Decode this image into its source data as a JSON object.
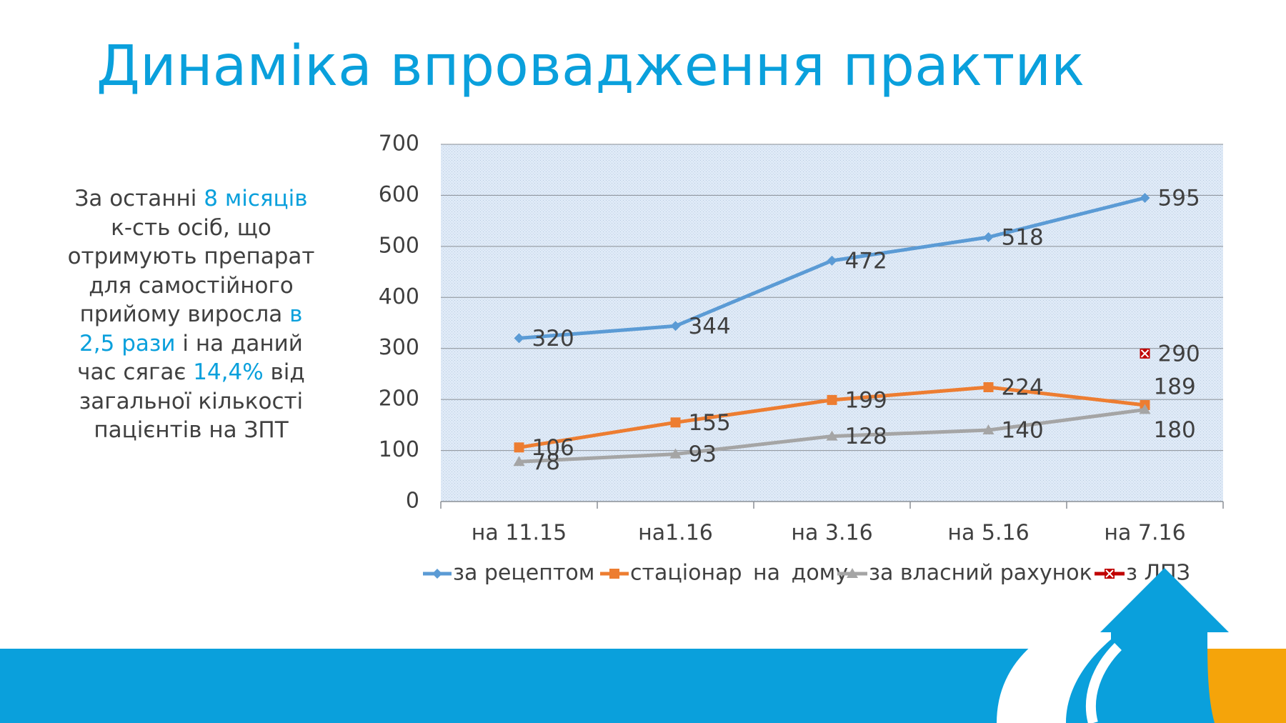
{
  "slide": {
    "title": "Динаміка впровадження практик",
    "side_text": {
      "p1": "За останні ",
      "h1": "8 місяців",
      "p2": "к-сть осіб, що отримують препарат для самостійного прийому виросла ",
      "h2": "в 2,5 рази",
      "p3": " і на даний час сягає ",
      "h3": "14,4%",
      "p4": " від загальної кількості пацієнтів на ЗПТ"
    },
    "colors": {
      "accent": "#0aa0dc",
      "footer_blue": "#0aa0dc",
      "footer_orange": "#f5a40a",
      "plot_bg": "#dce9f7"
    }
  },
  "chart_data": {
    "type": "line",
    "categories": [
      "на 11.15",
      "на1.16",
      "на 3.16",
      "на 5.16",
      "на 7.16"
    ],
    "ylim": [
      0,
      700
    ],
    "yticks": [
      0,
      100,
      200,
      300,
      400,
      500,
      600,
      700
    ],
    "grid": true,
    "legend_position": "bottom",
    "series": [
      {
        "name": "за рецептом",
        "values": [
          320,
          344,
          472,
          518,
          595
        ],
        "color": "#5b9bd5",
        "marker": "diamond"
      },
      {
        "name": "стаціонар на дому",
        "values": [
          106,
          155,
          199,
          224,
          189
        ],
        "color": "#ed7d31",
        "marker": "square"
      },
      {
        "name": "за власний рахунок",
        "values": [
          78,
          93,
          128,
          140,
          180
        ],
        "color": "#a5a5a5",
        "marker": "triangle"
      },
      {
        "name": "з ЛПЗ",
        "values": [
          null,
          null,
          null,
          null,
          290
        ],
        "color": "#c00000",
        "marker": "x-square"
      }
    ]
  }
}
